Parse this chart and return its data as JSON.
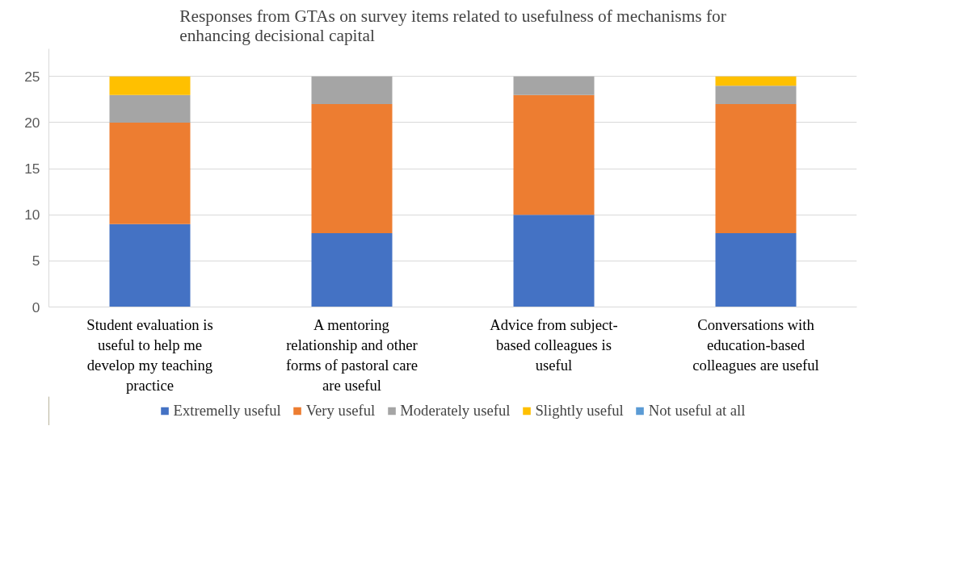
{
  "chart_data": {
    "type": "bar",
    "stacked": true,
    "title": "Responses from GTAs on survey items related to usefulness of mechanisms for enhancing decisional capital",
    "categories": [
      "Student evaluation is useful to help me develop my teaching practice",
      "A mentoring relationship and other forms of pastoral care are useful",
      "Advice from subject-based colleagues is useful",
      "Conversations with education-based colleagues are useful"
    ],
    "series": [
      {
        "name": "Extremelly useful",
        "color": "#4472c4",
        "values": [
          9,
          8,
          10,
          8
        ]
      },
      {
        "name": "Very useful",
        "color": "#ed7d31",
        "values": [
          11,
          14,
          13,
          14
        ]
      },
      {
        "name": "Moderately useful",
        "color": "#a5a5a5",
        "values": [
          3,
          3,
          2,
          2
        ]
      },
      {
        "name": "Slightly useful",
        "color": "#ffc000",
        "values": [
          2,
          0,
          0,
          1
        ]
      },
      {
        "name": "Not useful at all",
        "color": "#5b9bd5",
        "values": [
          0,
          0,
          0,
          0
        ]
      }
    ],
    "ylim": [
      0,
      28
    ],
    "yticks": [
      0,
      5,
      10,
      15,
      20,
      25
    ],
    "grid": "y",
    "legend": "bottom"
  }
}
